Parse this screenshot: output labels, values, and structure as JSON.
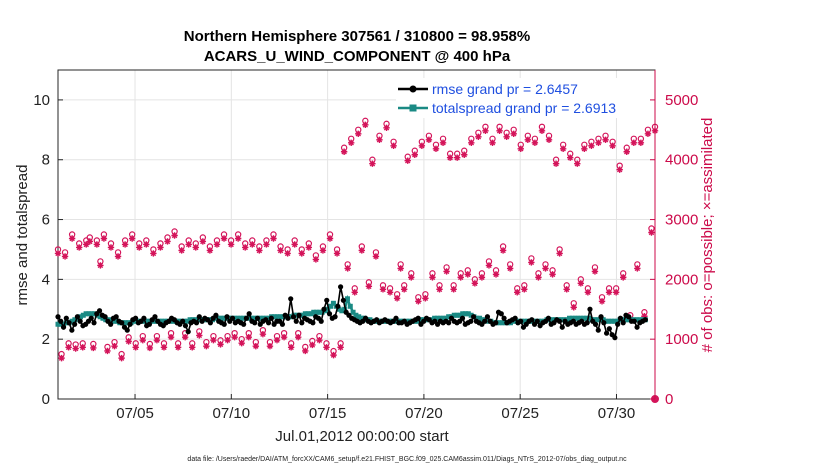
{
  "chart_data": {
    "type": "line",
    "title_line1": "Northern Hemisphere 307561 / 310800 = 98.958%",
    "title_line2": "ACARS_U_WIND_COMPONENT @ 400 hPa",
    "xlabel": "Jul.01,2012 00:00:00 start",
    "ylabel_left": "rmse and totalspread",
    "ylabel_right": "# of obs: o=possible; ×=assimilated",
    "footer_text": "data file: /Users/raeder/DAI/ATM_forcXX/CAM6_setup/f.e21.FHIST_BGC.f09_025.CAM6assim.011/Diags_NTrS_2012-07/obs_diag_output.nc",
    "x_range_days": [
      1,
      32
    ],
    "x_ticks": [
      {
        "label": "07/05",
        "day": 5
      },
      {
        "label": "07/10",
        "day": 10
      },
      {
        "label": "07/15",
        "day": 15
      },
      {
        "label": "07/20",
        "day": 20
      },
      {
        "label": "07/25",
        "day": 25
      },
      {
        "label": "07/30",
        "day": 30
      }
    ],
    "y_left_range": [
      0,
      11
    ],
    "y_left_ticks": [
      "0",
      "2",
      "4",
      "6",
      "8",
      "10"
    ],
    "y_right_range": [
      0,
      5500
    ],
    "y_right_ticks": [
      "0",
      "1000",
      "2000",
      "3000",
      "4000",
      "5000"
    ],
    "grid": true,
    "legend": [
      {
        "label": "rmse grand pr = 2.6457",
        "color": "#000000"
      },
      {
        "label": "totalspread grand pr = 2.6913",
        "color": "#1a8a84"
      }
    ],
    "colors": {
      "rmse": "#000000",
      "spread": "#1a8a84",
      "obs": "#d4145a",
      "right_axis": "#cc0a4a"
    },
    "obs_counts": [
      2450,
      700,
      2400,
      880,
      2700,
      860,
      2550,
      880,
      2600,
      2650,
      870,
      2600,
      2250,
      2700,
      820,
      2550,
      900,
      2400,
      700,
      2600,
      980,
      2700,
      880,
      2550,
      1000,
      2600,
      870,
      2450,
      1000,
      2550,
      880,
      2650,
      1050,
      2750,
      880,
      2500,
      1050,
      2600,
      880,
      2550,
      1080,
      2650,
      900,
      2500,
      1000,
      2600,
      930,
      2700,
      1000,
      2600,
      1050,
      2700,
      950,
      2550,
      1050,
      2600,
      900,
      2500,
      1100,
      2600,
      900,
      2700,
      1000,
      2500,
      1050,
      2450,
      880,
      2600,
      1050,
      2450,
      820,
      2550,
      920,
      2350,
      1000,
      2500,
      880,
      2700,
      750,
      2450,
      880,
      4150,
      2200,
      4300,
      1800,
      4450,
      2500,
      4600,
      1900,
      3950,
      2400,
      4350,
      1850,
      4550,
      1800,
      4250,
      1700,
      2200,
      1850,
      4000,
      2050,
      4100,
      1650,
      4250,
      1700,
      4350,
      2050,
      4200,
      1850,
      4300,
      2150,
      4050,
      1850,
      4050,
      2050,
      4100,
      2100,
      4300,
      1950,
      4400,
      2050,
      4500,
      2250,
      4300,
      2100,
      4500,
      2500,
      4400,
      2200,
      4450,
      1800,
      4200,
      1850,
      4350,
      2300,
      4300,
      2050,
      4500,
      2200,
      4350,
      2100,
      3950,
      2450,
      4200,
      1850,
      4050,
      1550,
      3950,
      1950,
      4200,
      1800,
      4250,
      2150,
      4300,
      1650,
      4350,
      1800,
      4250,
      1800,
      3850,
      2050,
      4150,
      1350,
      4300,
      2200,
      4300,
      1400,
      4450,
      2800,
      4500
    ],
    "obs_possible_extra": [
      2450,
      2650,
      2550,
      2600,
      2000
    ],
    "rmse": [
      2.75,
      2.6,
      2.4,
      2.7,
      2.55,
      2.3,
      2.5,
      2.75,
      2.6,
      2.45,
      2.5,
      2.6,
      2.7,
      2.55,
      2.85,
      2.95,
      2.8,
      2.75,
      2.6,
      2.5,
      2.7,
      2.75,
      2.6,
      2.55,
      2.4,
      2.3,
      2.5,
      2.65,
      2.7,
      2.55,
      2.6,
      2.7,
      2.45,
      2.5,
      2.65,
      2.75,
      2.6,
      2.5,
      2.45,
      2.55,
      2.6,
      2.7,
      2.65,
      2.55,
      2.5,
      2.6,
      2.45,
      2.25,
      2.55,
      2.6,
      2.55,
      2.75,
      2.6,
      2.7,
      2.65,
      2.55,
      2.7,
      2.8,
      2.6,
      2.55,
      2.5,
      2.75,
      2.6,
      2.7,
      2.55,
      2.6,
      2.55,
      2.5,
      2.7,
      2.85,
      2.6,
      2.55,
      2.7,
      2.5,
      2.6,
      2.65,
      2.55,
      2.7,
      2.5,
      2.6,
      2.6,
      2.5,
      2.8,
      2.7,
      3.35,
      2.75,
      2.6,
      2.8,
      2.55,
      2.7,
      2.65,
      2.6,
      2.55,
      2.75,
      2.7,
      2.6,
      3.0,
      3.3,
      2.85,
      2.7,
      2.75,
      3.1,
      3.75,
      3.3,
      2.9,
      2.8,
      2.7,
      2.65,
      2.6,
      2.55,
      2.6,
      2.7,
      2.6,
      2.55,
      2.6,
      2.65,
      2.55,
      2.6,
      2.65,
      2.6,
      2.55,
      2.6,
      2.7,
      2.55,
      2.55,
      2.6,
      2.5,
      2.55,
      2.6,
      2.65,
      2.7,
      2.5,
      2.6,
      2.7,
      2.65,
      2.55,
      2.6,
      2.5,
      2.6,
      2.55,
      2.6,
      2.55,
      2.7,
      2.6,
      2.55,
      2.6,
      2.7,
      2.5,
      2.55,
      2.6,
      2.75,
      2.6,
      2.55,
      2.5,
      2.6,
      2.75,
      2.6,
      2.5,
      2.55,
      2.9,
      2.85,
      2.7,
      2.55,
      2.6,
      2.65,
      2.7,
      2.55,
      2.6,
      2.4,
      2.5,
      2.6,
      2.65,
      2.5,
      2.6,
      2.45,
      2.55,
      2.6,
      2.7,
      2.5,
      2.55,
      2.65,
      2.6,
      2.4,
      2.6,
      2.5,
      2.55,
      2.6,
      2.5,
      2.55,
      2.6,
      2.5,
      2.55,
      3.0,
      2.6,
      2.5,
      2.3,
      2.75,
      2.55,
      2.2,
      2.35,
      2.15,
      2.05,
      2.5,
      2.7,
      2.55,
      2.8,
      2.75,
      2.6,
      2.6,
      2.4,
      2.55,
      2.6,
      2.65
    ],
    "spread": [
      2.5,
      2.5,
      2.5,
      2.55,
      2.55,
      2.6,
      2.65,
      2.7,
      2.75,
      2.8,
      2.85,
      2.85,
      2.85,
      2.85,
      2.8,
      2.75,
      2.7,
      2.65,
      2.65,
      2.6,
      2.6,
      2.6,
      2.55,
      2.55,
      2.55,
      2.55,
      2.55,
      2.6,
      2.6,
      2.6,
      2.6,
      2.6,
      2.6,
      2.6,
      2.6,
      2.6,
      2.6,
      2.6,
      2.6,
      2.6,
      2.6,
      2.6,
      2.6,
      2.6,
      2.6,
      2.6,
      2.6,
      2.65,
      2.65,
      2.65,
      2.65,
      2.65,
      2.65,
      2.65,
      2.65,
      2.65,
      2.7,
      2.7,
      2.7,
      2.7,
      2.7,
      2.7,
      2.7,
      2.7,
      2.7,
      2.7,
      2.7,
      2.7,
      2.7,
      2.7,
      2.7,
      2.7,
      2.7,
      2.7,
      2.7,
      2.7,
      2.75,
      2.75,
      2.75,
      2.75,
      2.75,
      2.75,
      2.75,
      2.75,
      2.8,
      2.8,
      2.8,
      2.8,
      2.85,
      2.85,
      2.85,
      2.9,
      2.9,
      2.9,
      2.9,
      2.95,
      3.0,
      3.1,
      3.2,
      3.1,
      3.0,
      2.95,
      3.0,
      3.35,
      3.1,
      2.9,
      2.8,
      2.75,
      2.7,
      2.7,
      2.65,
      2.65,
      2.6,
      2.6,
      2.6,
      2.6,
      2.6,
      2.6,
      2.6,
      2.6,
      2.6,
      2.6,
      2.6,
      2.6,
      2.6,
      2.6,
      2.6,
      2.6,
      2.6,
      2.65,
      2.65,
      2.65,
      2.65,
      2.65,
      2.7,
      2.7,
      2.7,
      2.7,
      2.7,
      2.75,
      2.75,
      2.8,
      2.8,
      2.8,
      2.85,
      2.85,
      2.85,
      2.8,
      2.75,
      2.7,
      2.7,
      2.65,
      2.65,
      2.6,
      2.6,
      2.55,
      2.55,
      2.55,
      2.55,
      2.55,
      2.55,
      2.55,
      2.6,
      2.6,
      2.6,
      2.6,
      2.6,
      2.6,
      2.6,
      2.6,
      2.6,
      2.6,
      2.6,
      2.6,
      2.65,
      2.65,
      2.65,
      2.65,
      2.65,
      2.65,
      2.65,
      2.65,
      2.7,
      2.7,
      2.7,
      2.7,
      2.7,
      2.7,
      2.7,
      2.7,
      2.65,
      2.65,
      2.65,
      2.65,
      2.65,
      2.6,
      2.6,
      2.6,
      2.6,
      2.6,
      2.65,
      2.65,
      2.65,
      2.65,
      2.65,
      2.65,
      2.65,
      2.65,
      2.65,
      2.65
    ]
  }
}
